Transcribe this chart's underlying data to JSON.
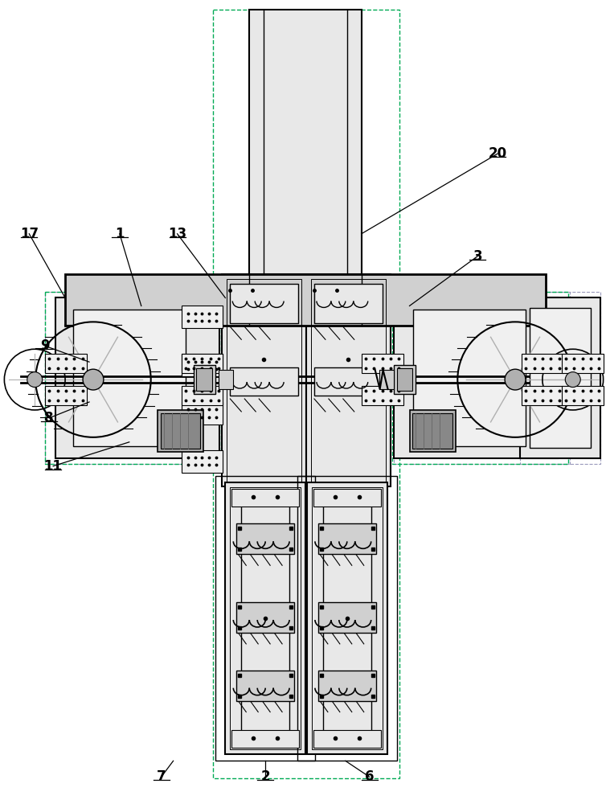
{
  "bg_color": "#ffffff",
  "lc": "#000000",
  "gray1": "#e8e8e8",
  "gray2": "#d0d0d0",
  "gray3": "#b0b0b0",
  "gray4": "#888888",
  "green": "#00aa55",
  "purple": "#8888cc",
  "figsize": [
    7.54,
    10.0
  ],
  "dpi": 100
}
